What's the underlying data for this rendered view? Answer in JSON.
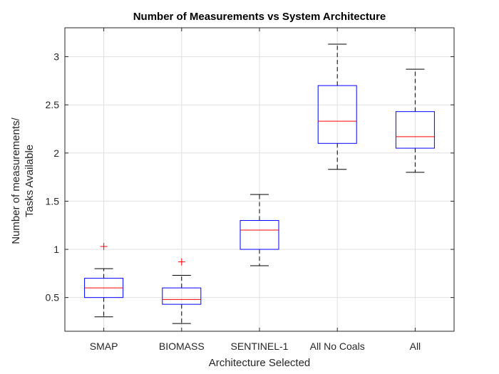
{
  "chart_data": {
    "type": "box",
    "title": "Number of Measurements vs System Architecture",
    "xlabel": "Architecture Selected",
    "ylabel_lines": [
      "Number of measurements/",
      "Tasks Available"
    ],
    "ylim": [
      0.15,
      3.3
    ],
    "yticks": [
      0.5,
      1,
      1.5,
      2,
      2.5,
      3
    ],
    "ytick_labels": [
      "0.5",
      "1",
      "1.5",
      "2",
      "2.5",
      "3"
    ],
    "grid": true,
    "colors": {
      "box": "#0000ff",
      "median": "#ff0000",
      "whisker": "#000000",
      "outlier": "#ff0000",
      "grid": "#dfdfdf",
      "axis": "#262626"
    },
    "categories": [
      "SMAP",
      "BIOMASS",
      "SENTINEL-1",
      "All No Coals",
      "All"
    ],
    "boxes": [
      {
        "category": "SMAP",
        "whisker_low": 0.3,
        "q1": 0.5,
        "median": 0.6,
        "q3": 0.7,
        "whisker_high": 0.8,
        "outliers": [
          1.03
        ]
      },
      {
        "category": "BIOMASS",
        "whisker_low": 0.23,
        "q1": 0.43,
        "median": 0.48,
        "q3": 0.6,
        "whisker_high": 0.73,
        "outliers": [
          0.87
        ]
      },
      {
        "category": "SENTINEL-1",
        "whisker_low": 0.83,
        "q1": 1.0,
        "median": 1.2,
        "q3": 1.3,
        "whisker_high": 1.57,
        "outliers": []
      },
      {
        "category": "All No Coals",
        "whisker_low": 1.83,
        "q1": 2.1,
        "median": 2.33,
        "q3": 2.7,
        "whisker_high": 3.13,
        "outliers": []
      },
      {
        "category": "All",
        "whisker_low": 1.8,
        "q1": 2.05,
        "median": 2.17,
        "q3": 2.43,
        "whisker_high": 2.87,
        "outliers": []
      }
    ]
  }
}
